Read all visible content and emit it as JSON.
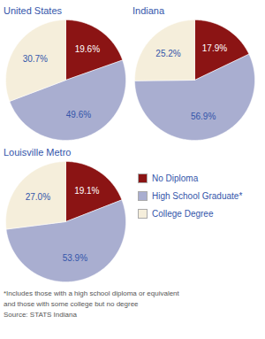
{
  "chart_data": [
    {
      "type": "pie",
      "title": "United States",
      "categories": [
        "No Diploma",
        "High School Graduate*",
        "College Degree"
      ],
      "values": [
        19.6,
        49.6,
        30.7
      ],
      "value_labels": [
        "19.6%",
        "49.6%",
        "30.7%"
      ],
      "colors": [
        "#8b1414",
        "#a9aed0",
        "#f5eedb"
      ],
      "data_labels": true
    },
    {
      "type": "pie",
      "title": "Indiana",
      "categories": [
        "No Diploma",
        "High School Graduate*",
        "College Degree"
      ],
      "values": [
        17.9,
        56.9,
        25.2
      ],
      "value_labels": [
        "17.9%",
        "56.9%",
        "25.2%"
      ],
      "colors": [
        "#8b1414",
        "#a9aed0",
        "#f5eedb"
      ],
      "data_labels": true
    },
    {
      "type": "pie",
      "title": "Louisville Metro",
      "categories": [
        "No Diploma",
        "High School Graduate*",
        "College Degree"
      ],
      "values": [
        19.1,
        53.9,
        27.0
      ],
      "value_labels": [
        "19.1%",
        "53.9%",
        "27.0%"
      ],
      "colors": [
        "#8b1414",
        "#a9aed0",
        "#f5eedb"
      ],
      "data_labels": true,
      "legend": "lower right",
      "annotations": [
        "*Includes those with a high school diploma or equivalent",
        "and those with some college but no degree",
        "Source: STATS Indiana"
      ]
    }
  ]
}
